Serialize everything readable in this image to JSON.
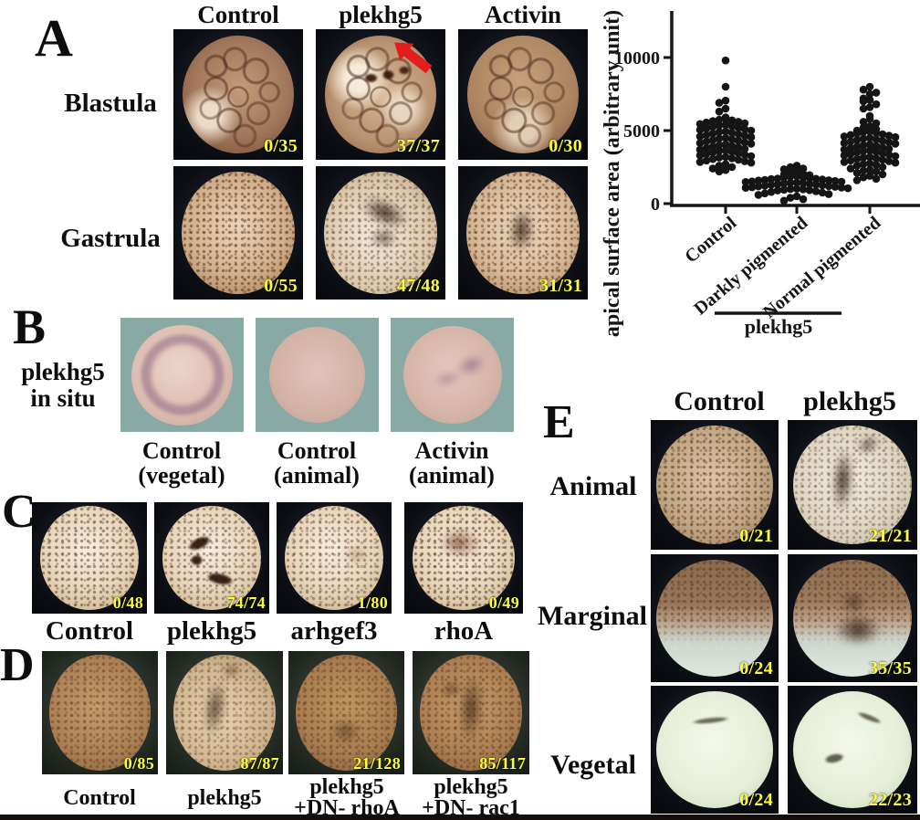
{
  "colors": {
    "count_text": "#fcfc3a",
    "arrow_red": "#e11d1d",
    "axis": "#151515"
  },
  "icons": {
    "arrow": "red-arrow-pointing-lower-left"
  },
  "panel_a": {
    "label": "A",
    "columns": [
      "Control",
      "plekhg5",
      "Activin"
    ],
    "rows": [
      "Blastula",
      "Gastrula"
    ],
    "counts": {
      "blastula": [
        "0/35",
        "37/37",
        "0/30"
      ],
      "gastrula": [
        "0/55",
        "47/48",
        "31/31"
      ]
    }
  },
  "panel_b": {
    "label": "B",
    "side_label": [
      "plekhg5",
      "in situ"
    ],
    "captions": [
      {
        "line1": "Control",
        "line2": "(vegetal)"
      },
      {
        "line1": "Control",
        "line2": "(animal)"
      },
      {
        "line1": "Activin",
        "line2": "(animal)"
      }
    ]
  },
  "panel_c": {
    "label": "C",
    "items": [
      {
        "name": "Control",
        "count": "0/48"
      },
      {
        "name": "plekhg5",
        "count": "74/74"
      },
      {
        "name": "arhgef3",
        "count": "1/80"
      },
      {
        "name": "rhoA",
        "count": "0/49"
      }
    ]
  },
  "panel_d": {
    "label": "D",
    "items": [
      {
        "line1": "Control",
        "line2": "",
        "count": "0/85"
      },
      {
        "line1": "plekhg5",
        "line2": "",
        "count": "87/87"
      },
      {
        "line1": "plekhg5",
        "line2": "+DN- rhoA",
        "count": "21/128"
      },
      {
        "line1": "plekhg5",
        "line2": "+DN- rac1",
        "count": "85/117"
      }
    ]
  },
  "panel_e": {
    "label": "E",
    "columns": [
      "Control",
      "plekhg5"
    ],
    "rows": [
      "Animal",
      "Marginal",
      "Vegetal"
    ],
    "counts": {
      "animal": [
        "0/21",
        "21/21"
      ],
      "marginal": [
        "0/24",
        "35/35"
      ],
      "vegetal": [
        "0/24",
        "22/23"
      ]
    }
  },
  "chart_data": {
    "type": "scatter",
    "subtype": "column-scatter-beeswarm",
    "title": "",
    "xlabel": "",
    "ylabel": "apical surface area (arbitrary unit)",
    "yticks": [
      0,
      5000,
      10000
    ],
    "ylim": [
      0,
      13000
    ],
    "grid": false,
    "legend": false,
    "x_tick_label_rotation": -40,
    "dot_color": "#151515",
    "group_annotation": {
      "label": "plekhg5",
      "applies_to": [
        "Darkly pigmented",
        "Normal pigmented"
      ]
    },
    "series": [
      {
        "name": "Control",
        "values": [
          9800,
          8000,
          7050,
          6900,
          6500,
          6300,
          5900,
          5800,
          5750,
          5700,
          5650,
          5600,
          5550,
          5500,
          5450,
          5400,
          5350,
          5300,
          5250,
          5200,
          5150,
          5100,
          5050,
          5000,
          4950,
          4900,
          4850,
          4800,
          4750,
          4700,
          4650,
          4600,
          4550,
          4500,
          4450,
          4400,
          4350,
          4300,
          4250,
          4200,
          4150,
          4100,
          4050,
          4000,
          3950,
          3900,
          3850,
          3800,
          3750,
          3700,
          3650,
          3600,
          3550,
          3500,
          3450,
          3400,
          3350,
          3300,
          3250,
          3200,
          3150,
          3100,
          3050,
          3000,
          2950,
          2900,
          2850,
          2800,
          2700,
          2600,
          2500,
          2400,
          2300,
          2200
        ]
      },
      {
        "name": "Darkly pigmented",
        "values": [
          2600,
          2500,
          2400,
          2350,
          2250,
          2150,
          2050,
          2000,
          1950,
          1900,
          1850,
          1800,
          1780,
          1750,
          1720,
          1700,
          1680,
          1650,
          1620,
          1600,
          1580,
          1550,
          1520,
          1500,
          1480,
          1450,
          1420,
          1400,
          1380,
          1350,
          1320,
          1300,
          1280,
          1250,
          1220,
          1200,
          1180,
          1150,
          1120,
          1100,
          1080,
          1050,
          1020,
          1000,
          980,
          950,
          920,
          900,
          850,
          800,
          750,
          700,
          650,
          600,
          500,
          400,
          300,
          200
        ]
      },
      {
        "name": "Normal pigmented",
        "values": [
          8000,
          7800,
          7600,
          7500,
          7200,
          7100,
          7000,
          6800,
          6600,
          6500,
          6000,
          5800,
          5600,
          5500,
          5300,
          5200,
          5100,
          5000,
          4950,
          4900,
          4850,
          4800,
          4750,
          4700,
          4650,
          4600,
          4550,
          4500,
          4450,
          4400,
          4350,
          4300,
          4250,
          4200,
          4150,
          4100,
          4050,
          4000,
          3950,
          3900,
          3850,
          3800,
          3750,
          3700,
          3650,
          3600,
          3550,
          3500,
          3450,
          3400,
          3350,
          3300,
          3250,
          3200,
          3150,
          3100,
          3050,
          3000,
          2950,
          2900,
          2850,
          2800,
          2750,
          2700,
          2650,
          2600,
          2500,
          2400,
          2300,
          2250,
          2200,
          2100,
          2000,
          1900,
          1800,
          1700,
          1600
        ]
      }
    ]
  }
}
